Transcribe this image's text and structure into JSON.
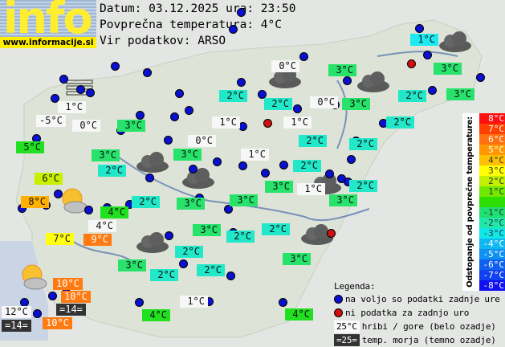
{
  "header": {
    "logo_text": "info",
    "logo_url": "www.informacije.si",
    "date_line": "Datum: 03.12.2025 ura: 23:50",
    "avg_line": "Povprečna temperatura: 4°C",
    "source_line": "Vir podatkov: ARSO"
  },
  "labels": [
    "1°C",
    "-5°C",
    "0°C",
    "3°C",
    "5°C",
    "3°C",
    "2°C",
    "6°C",
    "8°C",
    "4°C",
    "2°C",
    "4°C",
    "7°C",
    "9°C",
    "0°C",
    "3°C",
    "1°C",
    "0°C",
    "2°C",
    "3°C",
    "0°C",
    "2°C",
    "3°C",
    "2°C",
    "3°C",
    "1°C",
    "3°C",
    "1°C",
    "2°C",
    "2°C",
    "2°C",
    "1°C",
    "2°C",
    "2°C",
    "3°C",
    "1°C",
    "3°C",
    "3°C",
    "3°C",
    "3°C",
    "2°C",
    "2°C",
    "3°C",
    "2°C",
    "3°C",
    "2°C",
    "2°C",
    "1°C",
    "4°C",
    "4°C",
    "10°C",
    "10°C",
    "=14=",
    "12°C",
    "=14=",
    "10°C"
  ],
  "scale": {
    "title": "Odstopanje od povprečne temperature:",
    "items": [
      {
        "t": "8°C",
        "c": "#ff1010"
      },
      {
        "t": "7°C",
        "c": "#ff4000"
      },
      {
        "t": "6°C",
        "c": "#ff7010"
      },
      {
        "t": "5°C",
        "c": "#ff9800"
      },
      {
        "t": "4°C",
        "c": "#ffc000"
      },
      {
        "t": "3°C",
        "c": "#ffff00"
      },
      {
        "t": "2°C",
        "c": "#c0f000"
      },
      {
        "t": "1°C",
        "c": "#70e800"
      },
      {
        "t": "",
        "c": "#30dd00"
      },
      {
        "t": "-1°C",
        "c": "#20e070"
      },
      {
        "t": "-2°C",
        "c": "#20e8a8"
      },
      {
        "t": "-3°C",
        "c": "#10e8e8"
      },
      {
        "t": "-4°C",
        "c": "#10b8f0"
      },
      {
        "t": "-5°C",
        "c": "#1090f0"
      },
      {
        "t": "-6°C",
        "c": "#1060f0"
      },
      {
        "t": "-7°C",
        "c": "#1040f0"
      },
      {
        "t": "-8°C",
        "c": "#1010f0"
      }
    ]
  },
  "legend": {
    "title": "Legenda:",
    "blue": "na voljo so podatki zadnje ure",
    "red": "ni podatka za zadnjo uro",
    "white_sample": "25°C",
    "white_text": "hribi / gore (belo ozadje)",
    "dark_sample": "=25=",
    "dark_text": "temp. morja (temno ozadje)"
  },
  "colors": {
    "station": "#0a10d0",
    "missing": "#d01010"
  }
}
